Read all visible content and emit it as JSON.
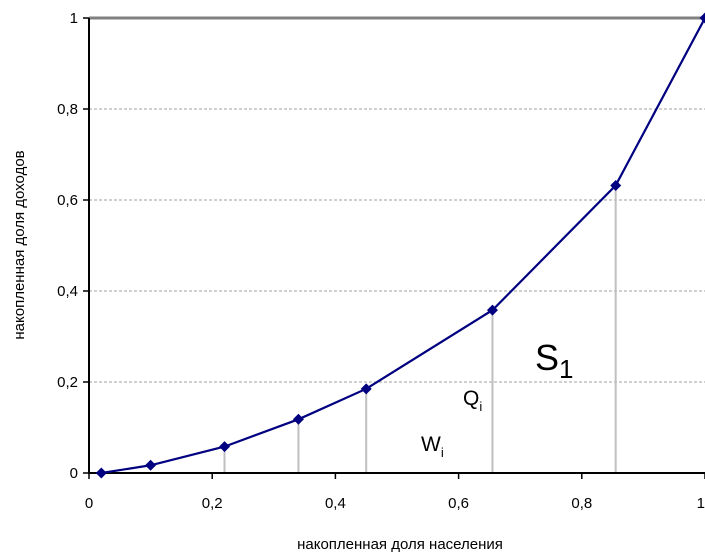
{
  "chart_data": {
    "type": "line",
    "xlabel": "накопленная доля населения",
    "ylabel": "накопленная доля доходов",
    "xlim": [
      0,
      1
    ],
    "ylim": [
      0,
      1
    ],
    "x_ticks": [
      "0",
      "0,2",
      "0,4",
      "0,6",
      "0,8",
      "1"
    ],
    "y_ticks": [
      "0",
      "0,2",
      "0,4",
      "0,6",
      "0,8",
      "1"
    ],
    "grid": "horizontal",
    "series": [
      {
        "x": [
          0.02,
          0.1,
          0.22,
          0.34,
          0.45,
          0.655,
          0.855,
          1.0
        ],
        "y": [
          0.0,
          0.017,
          0.058,
          0.118,
          0.185,
          0.358,
          0.632,
          1.0
        ],
        "color": "#000080",
        "marker": "diamond"
      }
    ],
    "drop_lines_x": [
      0.22,
      0.34,
      0.45,
      0.655,
      0.855
    ],
    "drop_line_color": "#c0c0c0",
    "annotations": [
      {
        "id": "s1",
        "main": "S",
        "sub": "1"
      },
      {
        "id": "qi",
        "main": "Q",
        "sub": "i"
      },
      {
        "id": "wi",
        "main": "W",
        "sub": "i"
      }
    ]
  }
}
